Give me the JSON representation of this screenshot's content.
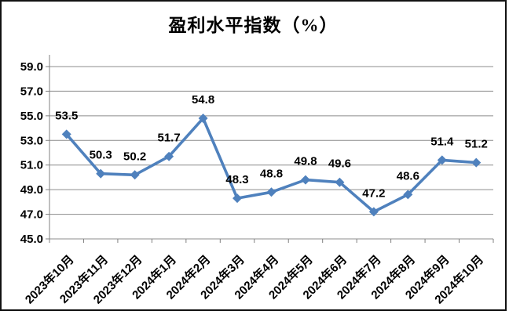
{
  "chart_data": {
    "type": "line",
    "title": "盈利水平指数（%）",
    "categories": [
      "2023年10月",
      "2023年11月",
      "2023年12月",
      "2024年1月",
      "2024年2月",
      "2024年3月",
      "2024年4月",
      "2024年5月",
      "2024年6月",
      "2024年7月",
      "2024年8月",
      "2024年9月",
      "2024年10月"
    ],
    "values": [
      53.5,
      50.3,
      50.2,
      51.7,
      54.8,
      48.3,
      48.8,
      49.8,
      49.6,
      47.2,
      48.6,
      51.4,
      51.2
    ],
    "data_labels": [
      "53.5",
      "50.3",
      "50.2",
      "51.7",
      "54.8",
      "48.3",
      "48.8",
      "49.8",
      "49.6",
      "47.2",
      "48.6",
      "51.4",
      "51.2"
    ],
    "xlabel": "",
    "ylabel": "",
    "ylim": [
      45.0,
      59.0
    ],
    "ytick_step": 2.0,
    "ytick_labels": [
      "45.0",
      "47.0",
      "49.0",
      "51.0",
      "53.0",
      "55.0",
      "57.0",
      "59.0"
    ],
    "grid": "horizontal",
    "legend": "none",
    "x_label_rotation_deg": -45,
    "colors": {
      "line": "#4F81BD",
      "marker": "#4F81BD",
      "gridline": "#8C8C8C",
      "axis": "#808080",
      "text": "#000000",
      "frame_border": "#121212",
      "background": "#ffffff"
    },
    "marker_shape": "diamond"
  }
}
